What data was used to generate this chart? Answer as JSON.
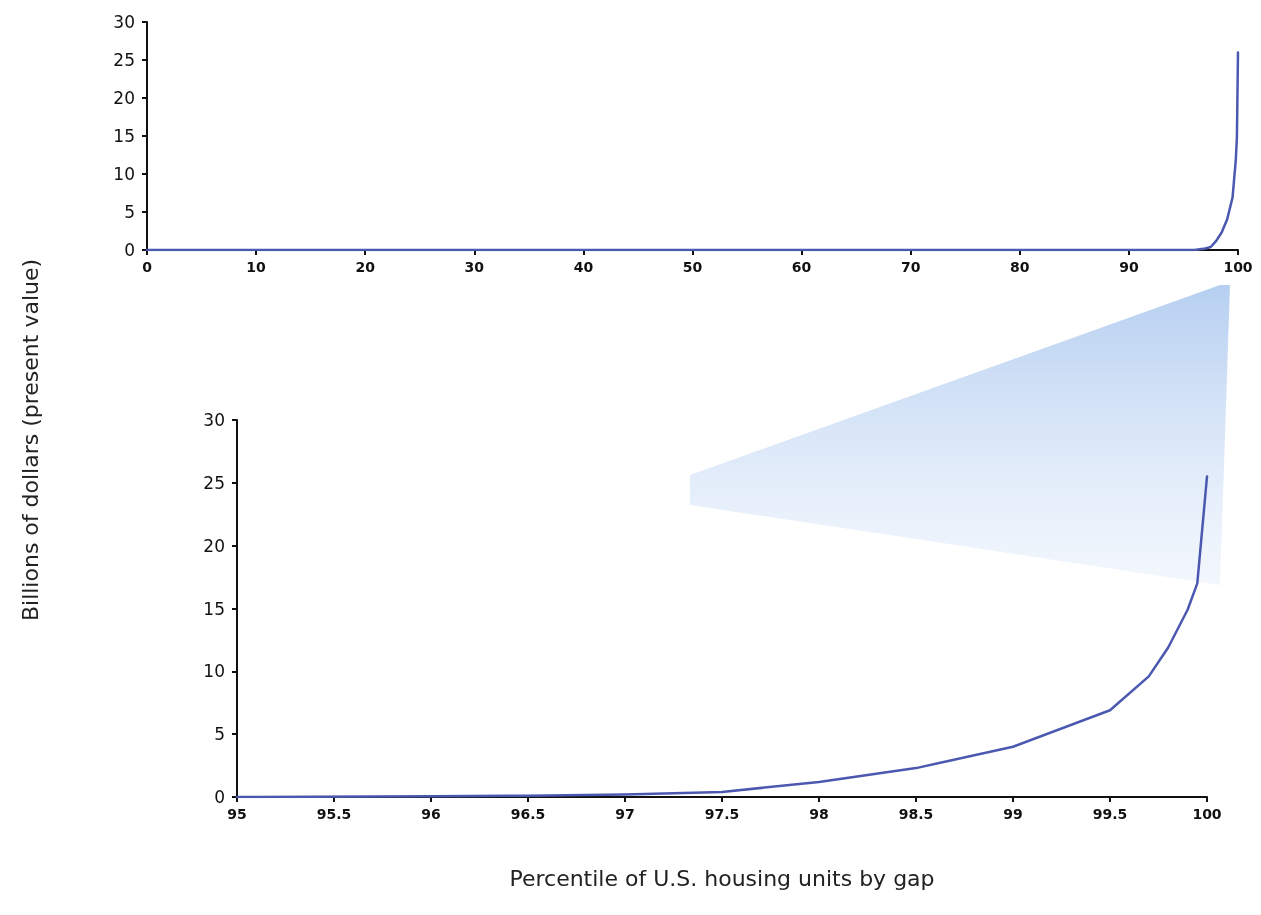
{
  "chart_data": [
    {
      "type": "line",
      "ylabel": "Billions of dollars (present value)",
      "x": [
        0,
        50,
        95,
        96,
        97,
        97.5,
        98,
        98.5,
        99,
        99.5,
        99.8,
        99.9,
        100
      ],
      "series": [
        {
          "color": "#4a58b0",
          "values": [
            0,
            0,
            0,
            0,
            0.2,
            0.4,
            1.2,
            2.3,
            4,
            6.9,
            11.9,
            14.9,
            26
          ]
        }
      ],
      "xlim": [
        0,
        100
      ],
      "xticks": [
        0,
        10,
        20,
        30,
        40,
        50,
        60,
        70,
        80,
        90,
        100
      ],
      "ylim": [
        0,
        30
      ],
      "yticks": [
        0,
        5,
        10,
        15,
        20,
        25,
        30
      ],
      "grid": false,
      "marker": "none",
      "line_style": "solid"
    },
    {
      "type": "line",
      "xlabel": "Percentile of U.S. housing units by gap",
      "x": [
        95,
        96,
        96.5,
        97,
        97.5,
        98,
        98.5,
        99,
        99.5,
        99.7,
        99.8,
        99.9,
        99.95,
        100
      ],
      "series": [
        {
          "color": "#4a58b0",
          "values": [
            0,
            0.05,
            0.1,
            0.2,
            0.4,
            1.2,
            2.3,
            4,
            6.9,
            9.6,
            11.9,
            14.9,
            17,
            25.5
          ]
        }
      ],
      "xlim": [
        95,
        100
      ],
      "xticks": [
        95,
        95.5,
        96,
        96.5,
        97,
        97.5,
        98,
        98.5,
        99,
        99.5,
        100
      ],
      "ylim": [
        0,
        30
      ],
      "yticks": [
        0,
        5,
        10,
        15,
        20,
        25,
        30
      ],
      "grid": false,
      "marker": "none",
      "line_style": "solid"
    }
  ]
}
